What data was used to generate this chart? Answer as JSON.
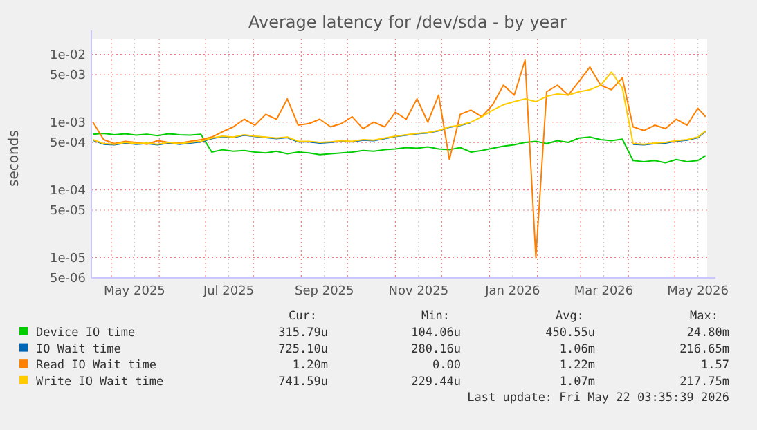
{
  "chart_data": {
    "type": "line",
    "title": "Average latency for /dev/sda - by year",
    "ylabel": "seconds",
    "log": true,
    "grid": true,
    "legend": "bottom",
    "x": [
      "2025-04-19",
      "2025-04-26",
      "2025-05-03",
      "2025-05-10",
      "2025-05-17",
      "2025-05-24",
      "2025-05-31",
      "2025-06-07",
      "2025-06-14",
      "2025-06-21",
      "2025-06-28",
      "2025-07-05",
      "2025-07-12",
      "2025-07-19",
      "2025-07-26",
      "2025-08-02",
      "2025-08-09",
      "2025-08-16",
      "2025-08-23",
      "2025-08-30",
      "2025-09-06",
      "2025-09-13",
      "2025-09-20",
      "2025-09-27",
      "2025-10-04",
      "2025-10-11",
      "2025-10-18",
      "2025-10-25",
      "2025-11-01",
      "2025-11-08",
      "2025-11-15",
      "2025-11-22",
      "2025-11-29",
      "2025-12-06",
      "2025-12-13",
      "2025-12-20",
      "2025-12-27",
      "2026-01-03",
      "2026-01-10",
      "2026-01-17",
      "2026-01-24",
      "2026-01-31",
      "2026-02-07",
      "2026-02-14",
      "2026-02-21",
      "2026-02-28",
      "2026-03-07",
      "2026-03-14",
      "2026-03-21",
      "2026-03-28",
      "2026-04-04",
      "2026-04-11",
      "2026-04-18",
      "2026-04-25",
      "2026-05-02",
      "2026-05-09",
      "2026-05-16",
      "2026-05-21"
    ],
    "xlim": [
      "2025-04-18",
      "2026-05-22"
    ],
    "xticks": [
      {
        "value": "2025-05-01",
        "label": null
      },
      {
        "value": "2025-05-16",
        "label": "May 2025"
      },
      {
        "value": "2025-06-01",
        "label": null
      },
      {
        "value": "2025-07-01",
        "label": null
      },
      {
        "value": "2025-07-16",
        "label": "Jul 2025"
      },
      {
        "value": "2025-08-01",
        "label": null
      },
      {
        "value": "2025-09-01",
        "label": null
      },
      {
        "value": "2025-09-16",
        "label": "Sep 2025"
      },
      {
        "value": "2025-10-01",
        "label": null
      },
      {
        "value": "2025-11-01",
        "label": null
      },
      {
        "value": "2025-11-16",
        "label": "Nov 2025"
      },
      {
        "value": "2025-12-01",
        "label": null
      },
      {
        "value": "2026-01-01",
        "label": null
      },
      {
        "value": "2026-01-16",
        "label": "Jan 2026"
      },
      {
        "value": "2026-02-01",
        "label": null
      },
      {
        "value": "2026-03-01",
        "label": null
      },
      {
        "value": "2026-03-16",
        "label": "Mar 2026"
      },
      {
        "value": "2026-04-01",
        "label": null
      },
      {
        "value": "2026-05-01",
        "label": null
      },
      {
        "value": "2026-05-16",
        "label": "May 2026"
      }
    ],
    "ylim": [
      5e-06,
      0.017
    ],
    "yticks": [
      {
        "value": 5e-06,
        "label": "5e-06"
      },
      {
        "value": 1e-05,
        "label": "1e-05"
      },
      {
        "value": 5e-05,
        "label": "5e-05"
      },
      {
        "value": 0.0001,
        "label": "1e-04"
      },
      {
        "value": 0.0005,
        "label": "5e-04"
      },
      {
        "value": 0.001,
        "label": "1e-03"
      },
      {
        "value": 0.005,
        "label": "5e-03"
      },
      {
        "value": 0.01,
        "label": "1e-02"
      }
    ],
    "series": [
      {
        "name": "Device IO time",
        "color": "#00cc00",
        "values": [
          0.00066,
          0.00068,
          0.00065,
          0.00067,
          0.00064,
          0.00066,
          0.00063,
          0.00067,
          0.00065,
          0.00064,
          0.00066,
          0.00036,
          0.00039,
          0.00037,
          0.00038,
          0.00036,
          0.00035,
          0.00037,
          0.00034,
          0.00036,
          0.00035,
          0.00033,
          0.00034,
          0.00035,
          0.00036,
          0.00038,
          0.00037,
          0.00039,
          0.0004,
          0.00042,
          0.00041,
          0.00043,
          0.0004,
          0.00039,
          0.00042,
          0.00036,
          0.00038,
          0.00041,
          0.00044,
          0.00046,
          0.0005,
          0.00052,
          0.00048,
          0.00053,
          0.0005,
          0.00058,
          0.0006,
          0.00055,
          0.00053,
          0.00056,
          0.00027,
          0.00026,
          0.00027,
          0.00025,
          0.00028,
          0.00026,
          0.00027,
          0.00032
        ]
      },
      {
        "name": "IO Wait time",
        "color": "#0066b3",
        "values": [
          0.00054,
          0.00047,
          0.00046,
          0.00049,
          0.00047,
          0.00048,
          0.00046,
          0.00049,
          0.00047,
          0.00049,
          0.00051,
          0.00057,
          0.00061,
          0.00059,
          0.00064,
          0.00061,
          0.00059,
          0.00057,
          0.00059,
          0.00051,
          0.00051,
          0.00049,
          0.0005,
          0.00052,
          0.00051,
          0.00054,
          0.00053,
          0.00057,
          0.00061,
          0.00064,
          0.00067,
          0.00069,
          0.00074,
          0.00084,
          0.00089,
          0.00099,
          null,
          null,
          null,
          null,
          null,
          null,
          null,
          null,
          null,
          null,
          null,
          null,
          null,
          null,
          0.00047,
          0.00046,
          0.00048,
          0.00049,
          0.00052,
          0.00054,
          0.00059,
          0.00073
        ]
      },
      {
        "name": "Read IO Wait time",
        "color": "#ff8000",
        "values": [
          0.001,
          0.00055,
          0.00048,
          0.00052,
          0.0005,
          0.00047,
          0.00053,
          0.0005,
          0.00049,
          0.00052,
          0.00055,
          0.0006,
          0.00072,
          0.00085,
          0.0011,
          0.0009,
          0.0013,
          0.0011,
          0.0022,
          0.0009,
          0.00095,
          0.0011,
          0.00085,
          0.00095,
          0.0012,
          0.0008,
          0.001,
          0.00085,
          0.0014,
          0.0011,
          0.0022,
          0.001,
          0.0025,
          0.00028,
          0.0013,
          0.0015,
          0.0012,
          0.0018,
          0.0035,
          0.0025,
          0.0082,
          1e-05,
          0.0028,
          0.0035,
          0.0025,
          0.004,
          0.0065,
          0.0035,
          0.003,
          0.0045,
          0.00085,
          0.00075,
          0.0009,
          0.0008,
          0.0011,
          0.0009,
          0.0016,
          0.0012
        ]
      },
      {
        "name": "Write IO Wait time",
        "color": "#ffcc00",
        "values": [
          0.00055,
          0.00048,
          0.00047,
          0.0005,
          0.00048,
          0.00049,
          0.00047,
          0.0005,
          0.00048,
          0.0005,
          0.00052,
          0.00058,
          0.00062,
          0.0006,
          0.00065,
          0.00062,
          0.0006,
          0.00058,
          0.0006,
          0.00052,
          0.00052,
          0.0005,
          0.00051,
          0.00053,
          0.00052,
          0.00055,
          0.00054,
          0.00058,
          0.00062,
          0.00065,
          0.00068,
          0.0007,
          0.00075,
          0.00085,
          0.0009,
          0.001,
          0.0012,
          0.0015,
          0.0018,
          0.002,
          0.0022,
          0.002,
          0.0024,
          0.0026,
          0.0025,
          0.0028,
          0.003,
          0.0035,
          0.0055,
          0.0032,
          0.00048,
          0.00047,
          0.00049,
          0.0005,
          0.00053,
          0.00055,
          0.0006,
          0.00074
        ]
      }
    ],
    "annotations": [
      "Cur:",
      "Min:",
      "Avg:",
      "Max:",
      "315.79u",
      "104.06u",
      "450.55u",
      "24.80m",
      "725.10u",
      "280.16u",
      "1.06m",
      "216.65m",
      "1.20m",
      "0.00",
      "1.22m",
      "1.57",
      "741.59u",
      "229.44u",
      "1.07m",
      "217.75m",
      "Last update: Fri May 22 03:35:39 2026"
    ]
  }
}
